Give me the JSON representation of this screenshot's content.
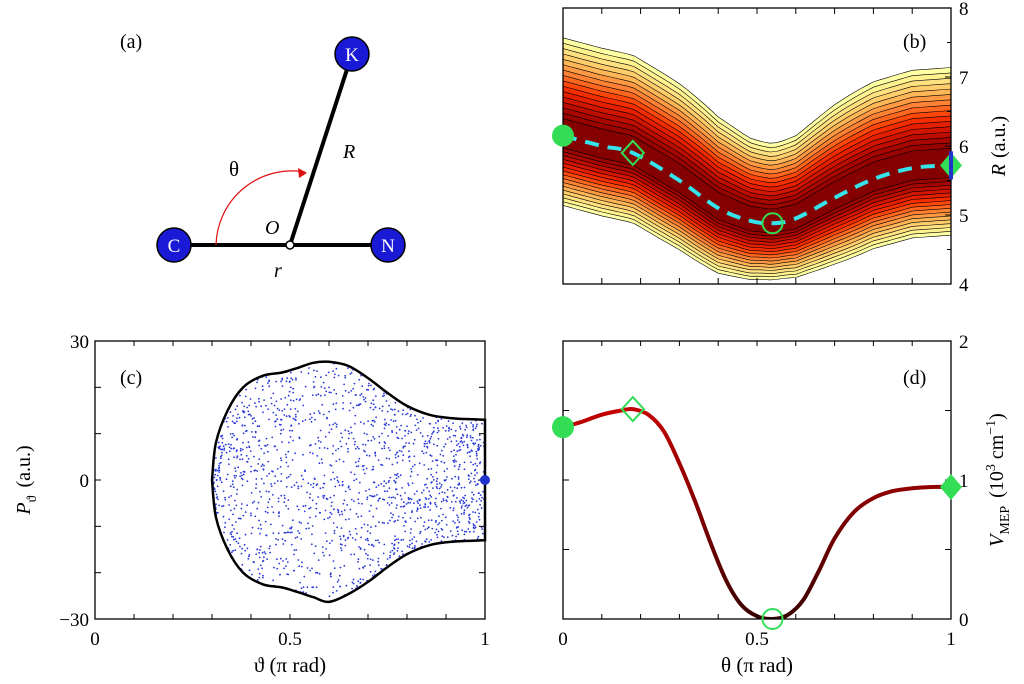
{
  "colors": {
    "atom_fill": "#1a1ad6",
    "atom_text": "#ffffff",
    "angle_arrow": "#e01010",
    "mep_line": "#35e4ea",
    "marker_green": "#33dd55",
    "marker_blue": "#2233cc",
    "potential_curve": "#aa0000",
    "scatter": "#2a3ad8"
  },
  "panel_a": {
    "label": "(a)",
    "atoms": {
      "c": "C",
      "n": "N",
      "k": "K"
    },
    "labels": {
      "theta": "θ",
      "origin": "O",
      "big_r": "R",
      "small_r": "r"
    }
  },
  "chart_data": [
    {
      "panel": "(b)",
      "type": "heatmap",
      "description_of_axes": "theta (pi rad) vs R (a.u.)",
      "ylabel": "R (a.u.)",
      "xlim": [
        0,
        1
      ],
      "ylim": [
        4,
        8
      ],
      "yticks": [
        4,
        5,
        6,
        7,
        8
      ],
      "xticks_unlabeled": [
        0,
        0.1,
        0.2,
        0.3,
        0.4,
        0.5,
        0.6,
        0.7,
        0.8,
        0.9,
        1.0
      ],
      "mep_path": {
        "x": [
          0,
          0.1,
          0.18,
          0.3,
          0.4,
          0.48,
          0.54,
          0.6,
          0.7,
          0.8,
          0.9,
          1.0
        ],
        "y": [
          6.15,
          6.0,
          5.9,
          5.5,
          5.1,
          4.92,
          4.88,
          4.95,
          5.25,
          5.52,
          5.68,
          5.72
        ]
      },
      "markers": [
        {
          "shape": "circle-filled",
          "x": 0,
          "y": 6.15
        },
        {
          "shape": "diamond-open",
          "x": 0.18,
          "y": 5.9
        },
        {
          "shape": "circle-open",
          "x": 0.54,
          "y": 4.88
        },
        {
          "shape": "diamond-filled",
          "x": 1.0,
          "y": 5.72
        }
      ]
    },
    {
      "panel": "(c)",
      "type": "scatter",
      "xlabel": "ϑ (π rad)",
      "ylabel": "P",
      "ylabel_subscript": "ϑ",
      "ylabel_unit": "(a.u.)",
      "xlim": [
        0,
        1
      ],
      "ylim": [
        -30,
        30
      ],
      "xticks": [
        0,
        0.5,
        1
      ],
      "xtick_labels": [
        "0",
        "0.5",
        "1"
      ],
      "yticks": [
        -30,
        0,
        30
      ],
      "ytick_labels": [
        "−30",
        "0",
        "30"
      ],
      "boundary": {
        "x": [
          0.3,
          0.31,
          0.34,
          0.38,
          0.43,
          0.48,
          0.52,
          0.56,
          0.6,
          0.65,
          0.7,
          0.75,
          0.8,
          0.86,
          0.92,
          0.97,
          1.0
        ],
        "p_upper": [
          0,
          8,
          15,
          20,
          22.5,
          23.2,
          24.2,
          25.3,
          25.5,
          24.6,
          22,
          18.8,
          16,
          14,
          13.3,
          13.1,
          13
        ],
        "p_lower": [
          0,
          -8,
          -15,
          -20,
          -22.5,
          -23.2,
          -24.2,
          -25.3,
          -26.3,
          -24.6,
          -22,
          -18.8,
          -16,
          -14,
          -13.3,
          -13.1,
          -13
        ]
      },
      "point_count": 1600,
      "special_point": {
        "x": 1.0,
        "y": 0
      }
    },
    {
      "panel": "(d)",
      "type": "line",
      "xlabel": "θ (π rad)",
      "ylabel": "V",
      "ylabel_subscript": "MEP",
      "ylabel_unit_parts": [
        "(10",
        "3",
        " cm",
        "−1",
        ")"
      ],
      "xlim": [
        0,
        1
      ],
      "ylim": [
        0,
        2
      ],
      "xticks": [
        0,
        0.5,
        1
      ],
      "xtick_labels": [
        "0",
        "0.5",
        "1"
      ],
      "yticks": [
        0,
        1,
        2
      ],
      "ytick_labels": [
        "0",
        "1",
        "2"
      ],
      "series": [
        {
          "x": [
            0,
            0.05,
            0.1,
            0.15,
            0.18,
            0.22,
            0.26,
            0.3,
            0.34,
            0.38,
            0.42,
            0.46,
            0.5,
            0.54,
            0.58,
            0.62,
            0.66,
            0.7,
            0.75,
            0.8,
            0.85,
            0.9,
            0.95,
            1.0
          ],
          "y": [
            1.38,
            1.42,
            1.47,
            1.5,
            1.51,
            1.47,
            1.35,
            1.12,
            0.85,
            0.55,
            0.28,
            0.1,
            0.02,
            0.0,
            0.03,
            0.14,
            0.35,
            0.58,
            0.77,
            0.87,
            0.92,
            0.94,
            0.95,
            0.95
          ]
        }
      ],
      "markers": [
        {
          "shape": "circle-filled",
          "x": 0,
          "y": 1.38
        },
        {
          "shape": "diamond-open",
          "x": 0.18,
          "y": 1.51
        },
        {
          "shape": "circle-open",
          "x": 0.54,
          "y": 0.0
        },
        {
          "shape": "diamond-filled",
          "x": 1.0,
          "y": 0.95
        }
      ]
    }
  ],
  "panel_labels": {
    "b": "(b)",
    "c": "(c)",
    "d": "(d)"
  },
  "ylabel_b": "R",
  "ylabel_b_unit": "(a.u.)"
}
